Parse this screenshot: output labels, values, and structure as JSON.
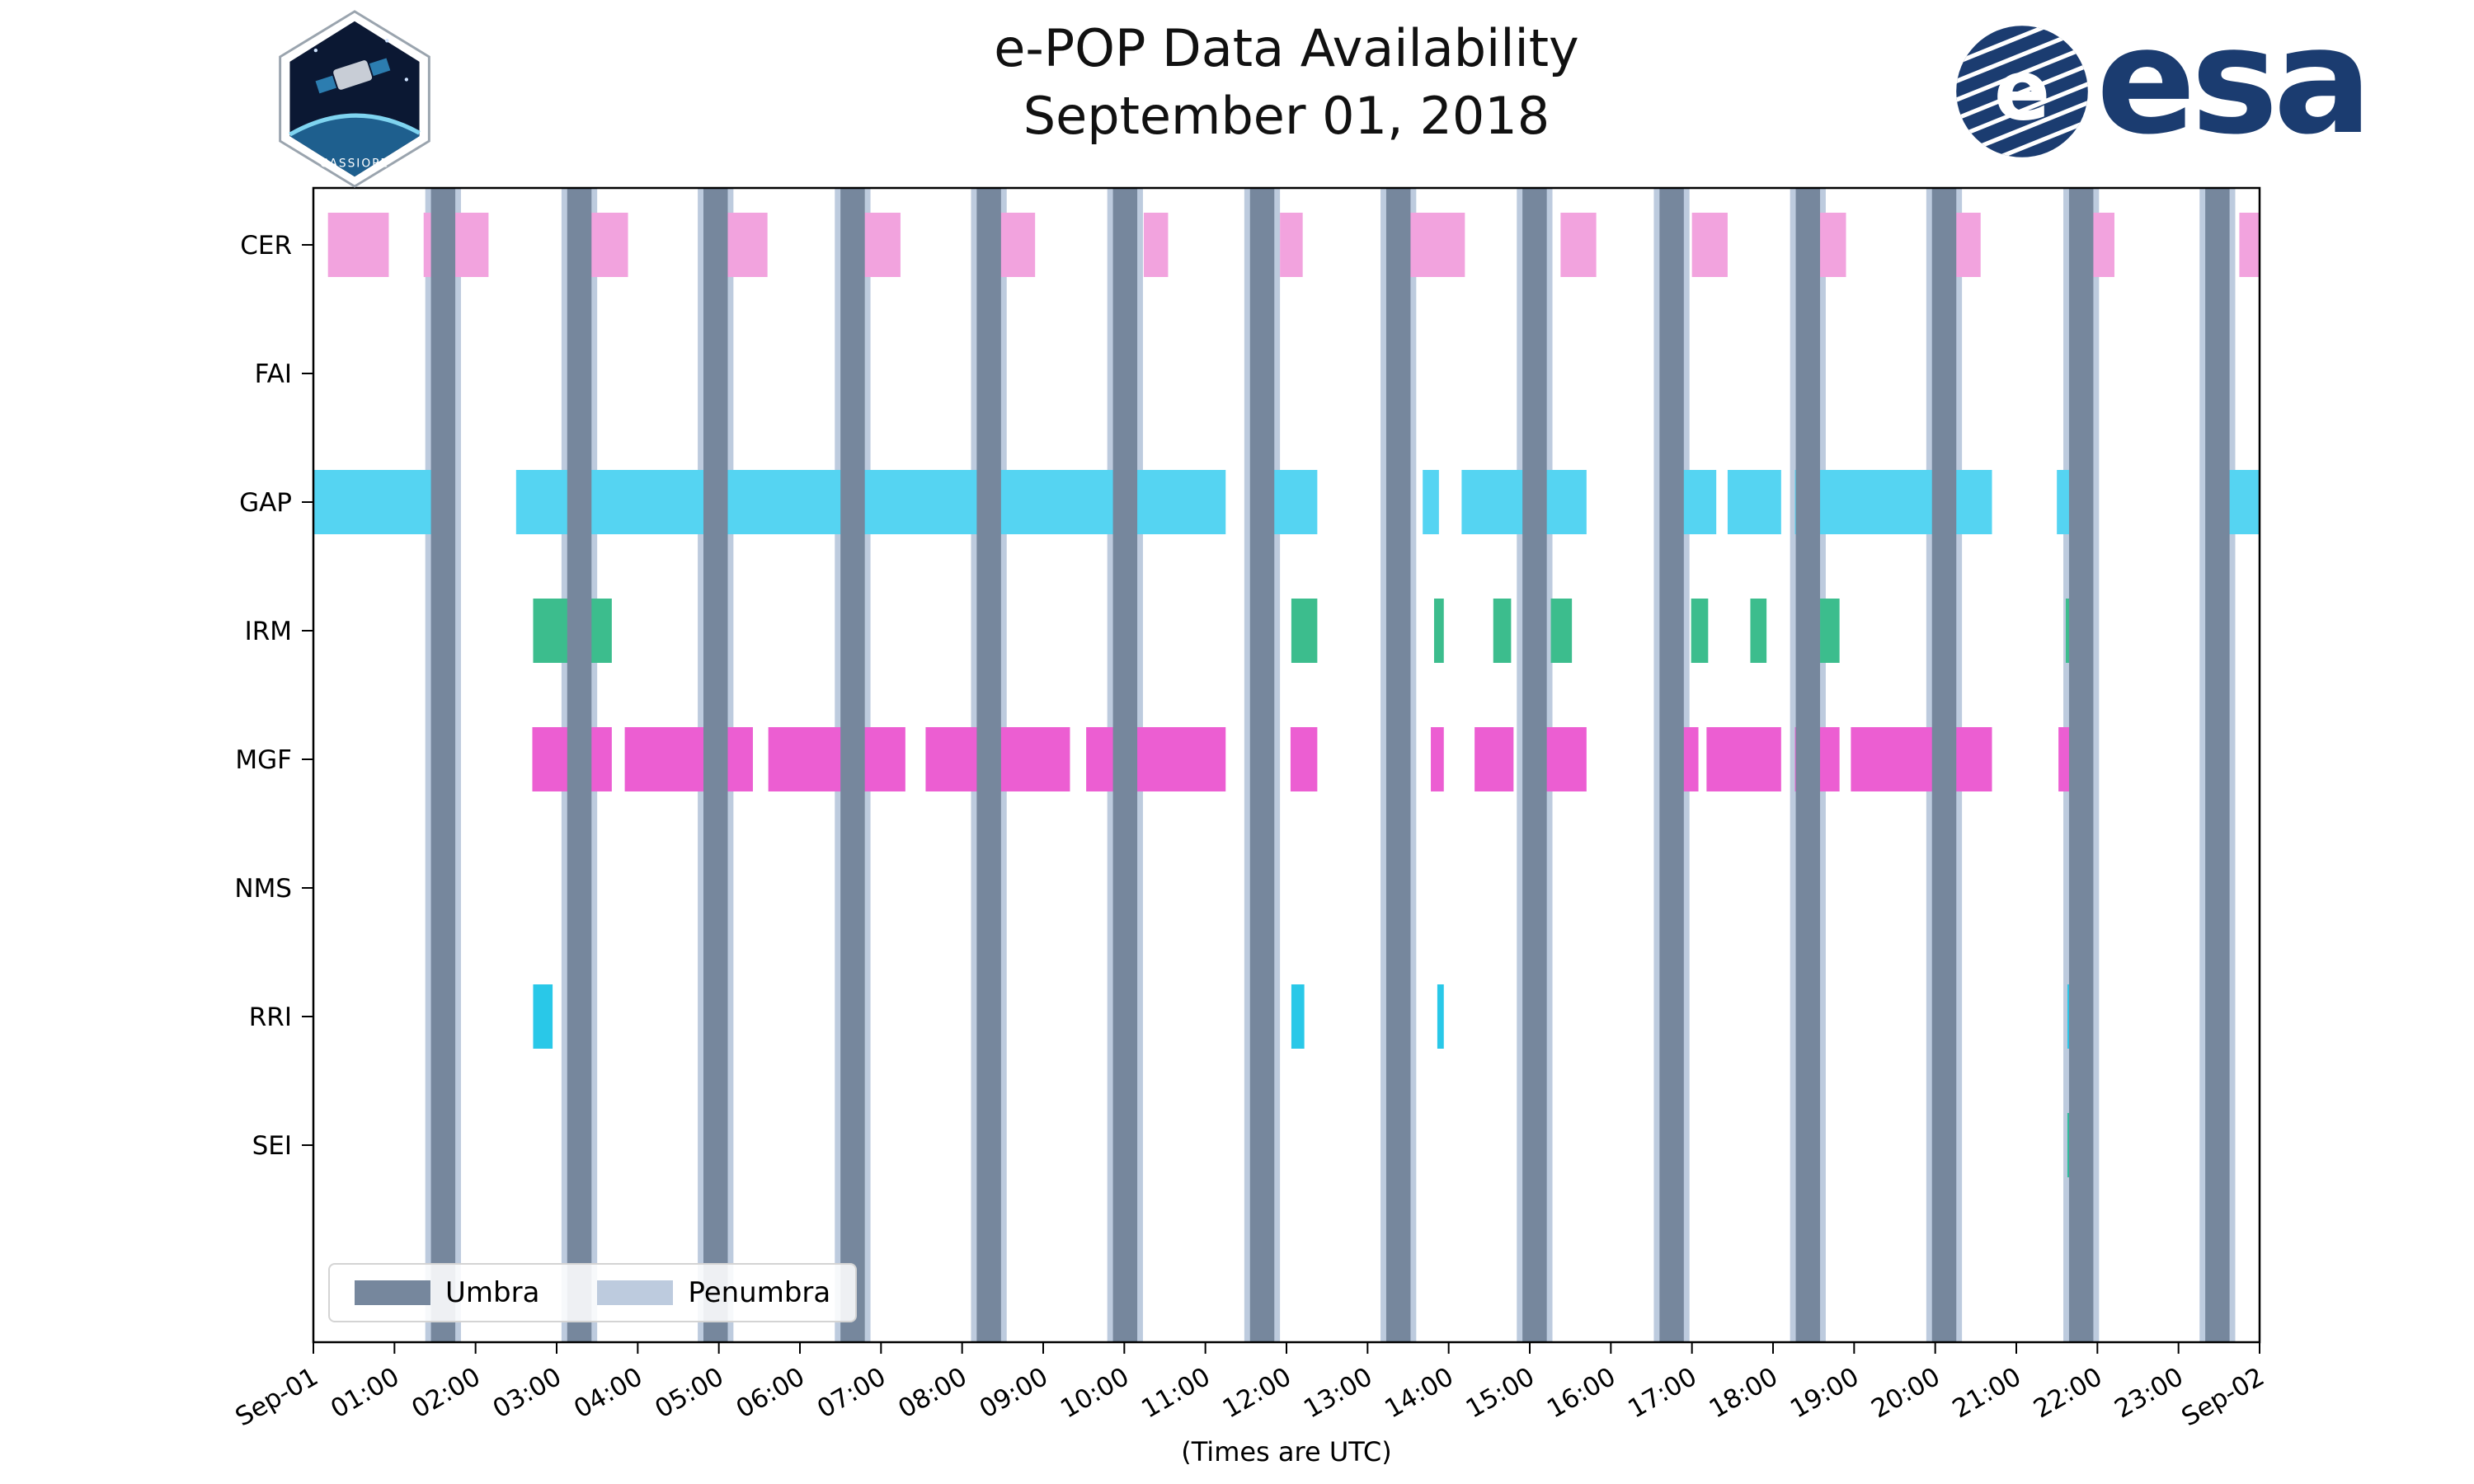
{
  "page": {
    "title_line1": "e-POP Data Availability",
    "title_line2": "September 01, 2018",
    "x_axis_caption": "(Times are UTC)"
  },
  "legend": {
    "items": [
      {
        "label": "Umbra"
      },
      {
        "label": "Penumbra"
      }
    ]
  },
  "logos": {
    "cassiope_caption": "CASSIOPE",
    "esa_wordmark": "esa"
  },
  "colors": {
    "umbra": "#76879D",
    "penumbra": "#BDCBDE",
    "cer": "#F2A3DE",
    "gap": "#55D4F2",
    "irm": "#3CBD8D",
    "mgf": "#EC5ED2",
    "rri": "#29C8E8",
    "sei": "#2FBD9A",
    "esa_blue": "#1B3C70",
    "patch_navy": "#0B1833",
    "axis_text": "#000000"
  },
  "chart_data": {
    "type": "timeline",
    "title": "e-POP Data Availability",
    "subtitle": "September 01, 2018",
    "xlabel": "(Times are UTC)",
    "x_unit": "hours UTC on 2018-09-01",
    "xlim": [
      0,
      24
    ],
    "x_tick_labels": [
      "Sep-01",
      "01:00",
      "02:00",
      "03:00",
      "04:00",
      "05:00",
      "06:00",
      "07:00",
      "08:00",
      "09:00",
      "10:00",
      "11:00",
      "12:00",
      "13:00",
      "14:00",
      "15:00",
      "16:00",
      "17:00",
      "18:00",
      "19:00",
      "20:00",
      "21:00",
      "22:00",
      "23:00",
      "Sep-02"
    ],
    "grid": false,
    "legend_position": "lower-left",
    "rows": [
      {
        "name": "CER",
        "color": "#F2A3DE",
        "intervals": [
          [
            0.18,
            0.93
          ],
          [
            1.36,
            2.16
          ],
          [
            3.26,
            3.88
          ],
          [
            4.98,
            5.6
          ],
          [
            6.78,
            7.24
          ],
          [
            8.46,
            8.9
          ],
          [
            10.24,
            10.54
          ],
          [
            11.92,
            12.2
          ],
          [
            13.27,
            14.2
          ],
          [
            15.38,
            15.82
          ],
          [
            17.0,
            17.44
          ],
          [
            18.43,
            18.9
          ],
          [
            20.09,
            20.56
          ],
          [
            21.91,
            22.21
          ],
          [
            23.75,
            24.0
          ]
        ]
      },
      {
        "name": "FAI",
        "color": "#9AA0A6",
        "intervals": []
      },
      {
        "name": "GAP",
        "color": "#55D4F2",
        "intervals": [
          [
            0.0,
            1.66
          ],
          [
            2.5,
            3.14
          ],
          [
            3.28,
            11.25
          ],
          [
            11.84,
            12.38
          ],
          [
            13.68,
            13.88
          ],
          [
            14.16,
            15.7
          ],
          [
            16.64,
            17.3
          ],
          [
            17.44,
            18.1
          ],
          [
            18.27,
            20.7
          ],
          [
            21.5,
            21.84
          ],
          [
            23.56,
            24.0
          ]
        ]
      },
      {
        "name": "IRM",
        "color": "#3CBD8D",
        "intervals": [
          [
            2.71,
            3.14
          ],
          [
            3.24,
            3.68
          ],
          [
            12.06,
            12.38
          ],
          [
            13.82,
            13.94
          ],
          [
            14.55,
            14.77
          ],
          [
            15.26,
            15.52
          ],
          [
            16.99,
            17.2
          ],
          [
            17.72,
            17.92
          ],
          [
            18.58,
            18.82
          ],
          [
            21.61,
            21.77
          ]
        ]
      },
      {
        "name": "MGF",
        "color": "#EC5ED2",
        "intervals": [
          [
            2.7,
            3.14
          ],
          [
            3.28,
            3.68
          ],
          [
            3.84,
            5.42
          ],
          [
            5.61,
            7.3
          ],
          [
            7.55,
            9.33
          ],
          [
            9.53,
            11.25
          ],
          [
            12.05,
            12.38
          ],
          [
            13.78,
            13.94
          ],
          [
            14.32,
            14.8
          ],
          [
            15.0,
            15.7
          ],
          [
            16.74,
            17.08
          ],
          [
            17.18,
            18.1
          ],
          [
            18.27,
            18.82
          ],
          [
            18.96,
            20.7
          ],
          [
            21.52,
            21.84
          ]
        ]
      },
      {
        "name": "NMS",
        "color": "#9AA0A6",
        "intervals": []
      },
      {
        "name": "RRI",
        "color": "#29C8E8",
        "intervals": [
          [
            2.71,
            2.95
          ],
          [
            3.3,
            3.42
          ],
          [
            12.06,
            12.22
          ],
          [
            13.86,
            13.94
          ],
          [
            21.63,
            21.75
          ]
        ]
      },
      {
        "name": "SEI",
        "color": "#2FBD9A",
        "intervals": [
          [
            21.63,
            21.77
          ]
        ]
      }
    ],
    "shading": {
      "umbra": {
        "color": "#76879D",
        "intervals": [
          [
            1.45,
            1.75
          ],
          [
            3.13,
            3.43
          ],
          [
            4.81,
            5.11
          ],
          [
            6.5,
            6.8
          ],
          [
            8.18,
            8.48
          ],
          [
            9.86,
            10.16
          ],
          [
            11.55,
            11.85
          ],
          [
            13.23,
            13.53
          ],
          [
            14.91,
            15.21
          ],
          [
            16.6,
            16.9
          ],
          [
            18.28,
            18.58
          ],
          [
            19.96,
            20.26
          ],
          [
            21.65,
            21.95
          ],
          [
            23.33,
            23.63
          ]
        ]
      },
      "penumbra": {
        "color": "#BDCBDE",
        "pad_hours": 0.07
      }
    }
  }
}
